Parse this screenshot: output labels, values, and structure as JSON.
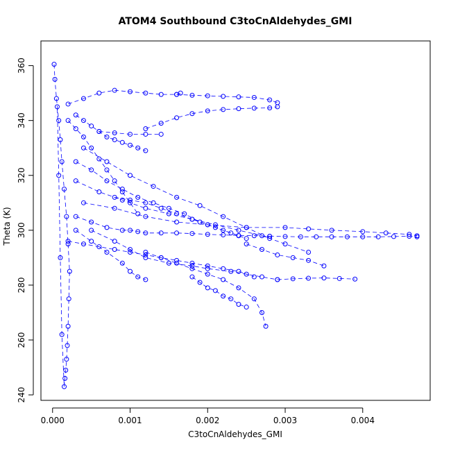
{
  "chart_data": {
    "type": "scatter",
    "title": "ATOM4 Southbound C3toCnAldehydes_GMI",
    "xlabel": "C3toCnAldehydes_GMI",
    "ylabel": "Theta (K)",
    "xlim": [
      -0.00015,
      0.00487
    ],
    "ylim": [
      238,
      369
    ],
    "xticks": [
      0.0,
      0.001,
      0.002,
      0.003,
      0.004
    ],
    "xtick_labels": [
      "0.000",
      "0.001",
      "0.002",
      "0.003",
      "0.004"
    ],
    "yticks": [
      240,
      260,
      280,
      300,
      320,
      340,
      360
    ],
    "ytick_labels": [
      "240",
      "260",
      "280",
      "300",
      "320",
      "340",
      "360"
    ],
    "grid": false,
    "marker": "open-circle",
    "connected": true,
    "color": "#0000ff",
    "series": [
      {
        "name": "",
        "x": [
          2e-05,
          3e-05,
          5e-05,
          8e-05,
          0.0001,
          0.00012,
          0.00015,
          0.00018,
          0.0002,
          0.00022,
          0.00021,
          0.0002,
          0.00019,
          0.00018,
          0.00017,
          0.00016,
          0.00015,
          0.00012,
          0.0001,
          8e-05,
          6e-05
        ],
        "y": [
          360.5,
          355,
          348,
          340,
          333,
          325,
          315,
          305,
          295,
          285,
          275,
          265,
          258,
          253,
          249,
          246,
          243,
          262,
          290,
          320,
          345
        ]
      },
      {
        "name": "",
        "x": [
          0.0002,
          0.0004,
          0.0006,
          0.0008,
          0.001,
          0.0012,
          0.0014,
          0.0016,
          0.00165
        ],
        "y": [
          346,
          348,
          350,
          351,
          350.5,
          350,
          349.5,
          349.5,
          350
        ]
      },
      {
        "name": "",
        "x": [
          0.0016,
          0.0018,
          0.002,
          0.0022,
          0.0024,
          0.0026,
          0.0028,
          0.0029
        ],
        "y": [
          349.5,
          349.2,
          349,
          348.8,
          348.6,
          348.4,
          347.5,
          346.5
        ]
      },
      {
        "name": "",
        "x": [
          0.0012,
          0.0014,
          0.0016,
          0.0018,
          0.002,
          0.0022,
          0.0024,
          0.0026,
          0.0028,
          0.0029
        ],
        "y": [
          337,
          339,
          341,
          342.5,
          343.5,
          344,
          344.3,
          344.5,
          344.6,
          345
        ]
      },
      {
        "name": "",
        "x": [
          0.0003,
          0.0005,
          0.0007,
          0.0009,
          0.001,
          0.0011,
          0.0012,
          0.0014,
          0.0016,
          0.0018,
          0.002,
          0.0022,
          0.0024,
          0.0026,
          0.0028
        ],
        "y": [
          305,
          303,
          301,
          300,
          300,
          299.5,
          299,
          299,
          299,
          298.8,
          298.5,
          298.3,
          298.1,
          298,
          297.8
        ]
      },
      {
        "name": "",
        "x": [
          0.0028,
          0.003,
          0.0032,
          0.0034,
          0.0036,
          0.0038,
          0.004,
          0.0042,
          0.0044,
          0.0046,
          0.0047
        ],
        "y": [
          297.8,
          297.7,
          297.6,
          297.6,
          297.6,
          297.6,
          297.6,
          297.6,
          297.7,
          297.8,
          297.6
        ]
      },
      {
        "name": "",
        "x": [
          0.0004,
          0.0008,
          0.0012,
          0.0016,
          0.002,
          0.0025,
          0.003,
          0.0033,
          0.0036,
          0.004,
          0.0043,
          0.0046,
          0.0047
        ],
        "y": [
          310,
          308,
          305,
          303,
          302,
          301,
          301,
          300.5,
          300,
          299.5,
          299,
          298.5,
          298
        ]
      },
      {
        "name": "",
        "x": [
          0.0005,
          0.0008,
          0.001,
          0.0012,
          0.0015,
          0.0018,
          0.002,
          0.0023,
          0.0025,
          0.0027,
          0.0029
        ],
        "y": [
          300,
          296,
          293,
          290,
          288,
          287,
          286,
          285,
          284,
          283,
          282
        ]
      },
      {
        "name": "",
        "x": [
          0.0029,
          0.0031,
          0.0033,
          0.0035,
          0.0037,
          0.0039
        ],
        "y": [
          282,
          282.3,
          282.5,
          282.6,
          282.4,
          282.2
        ]
      },
      {
        "name": "",
        "x": [
          0.0012,
          0.0014,
          0.0016,
          0.0018,
          0.002,
          0.0022,
          0.0024,
          0.0026,
          0.0027,
          0.00275
        ],
        "y": [
          292,
          290,
          288,
          286,
          284,
          282,
          279,
          275,
          270,
          265
        ]
      },
      {
        "name": "",
        "x": [
          0.0018,
          0.0019,
          0.002,
          0.0021,
          0.0022,
          0.0023,
          0.0024,
          0.0025
        ],
        "y": [
          283,
          281,
          279,
          278,
          276,
          275,
          273,
          272
        ]
      },
      {
        "name": "",
        "x": [
          0.0003,
          0.0005,
          0.0007,
          0.0009,
          0.001,
          0.0011,
          0.0012
        ],
        "y": [
          300,
          296,
          292,
          288,
          285,
          283,
          282
        ]
      },
      {
        "name": "",
        "x": [
          0.0003,
          0.0004,
          0.0005,
          0.0006,
          0.0007,
          0.0008,
          0.0009,
          0.001,
          0.0011,
          0.0012
        ],
        "y": [
          342,
          340,
          338,
          336,
          334,
          333,
          332,
          331,
          330,
          329
        ]
      },
      {
        "name": "",
        "x": [
          0.0006,
          0.0008,
          0.001,
          0.0012,
          0.0014
        ],
        "y": [
          336,
          335.5,
          335,
          335,
          335
        ]
      },
      {
        "name": "",
        "x": [
          0.0003,
          0.0005,
          0.0007,
          0.0009,
          0.0011,
          0.0013,
          0.0015,
          0.0017,
          0.0019,
          0.0021,
          0.0023,
          0.0025
        ],
        "y": [
          325,
          322,
          318,
          315,
          312,
          310,
          308,
          306,
          303,
          301,
          299,
          297
        ]
      },
      {
        "name": "",
        "x": [
          0.0003,
          0.0006,
          0.0009,
          0.0012,
          0.0015,
          0.0018,
          0.0021,
          0.0024,
          0.0027,
          0.003,
          0.0033
        ],
        "y": [
          318,
          314,
          311,
          308,
          306,
          304,
          302,
          300,
          298,
          295,
          292
        ]
      },
      {
        "name": "",
        "x": [
          0.0004,
          0.0007,
          0.001,
          0.0013,
          0.0016,
          0.0019,
          0.0022,
          0.0025,
          0.0028
        ],
        "y": [
          330,
          325,
          320,
          316,
          312,
          309,
          305,
          301,
          297
        ]
      },
      {
        "name": "",
        "x": [
          0.0002,
          0.0004,
          0.0006,
          0.0008,
          0.001,
          0.0012,
          0.0014,
          0.0016,
          0.0018,
          0.002,
          0.0022,
          0.0024,
          0.0026
        ],
        "y": [
          296,
          295,
          294,
          293,
          292,
          291,
          290,
          289,
          288,
          287,
          286,
          285,
          283
        ]
      },
      {
        "name": "",
        "x": [
          0.0025,
          0.0027,
          0.0029,
          0.0031,
          0.0033,
          0.0035
        ],
        "y": [
          295,
          293,
          291,
          290,
          289,
          287
        ]
      },
      {
        "name": "",
        "x": [
          0.0002,
          0.0003,
          0.0004,
          0.0005,
          0.0006,
          0.0007,
          0.0008,
          0.0009,
          0.001,
          0.0011
        ],
        "y": [
          340,
          337,
          334,
          330,
          326,
          322,
          318,
          314,
          310,
          306
        ]
      },
      {
        "name": "",
        "x": [
          0.0008,
          0.001,
          0.0012,
          0.0014,
          0.0016,
          0.0018,
          0.002,
          0.0022,
          0.0024
        ],
        "y": [
          312,
          311,
          310,
          308,
          306,
          304,
          302,
          300,
          298
        ]
      }
    ]
  }
}
